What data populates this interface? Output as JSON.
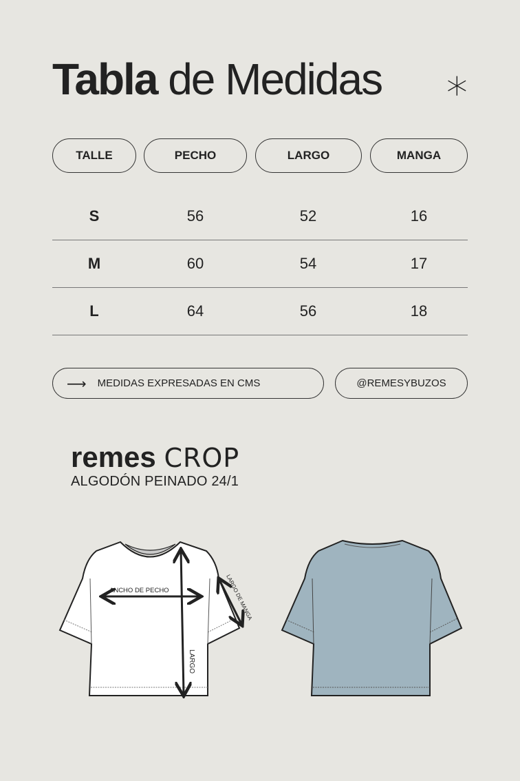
{
  "header": {
    "title_bold": "Tabla",
    "title_light": "de Medidas",
    "decor_icon": "asterisk-icon"
  },
  "table": {
    "columns": [
      "TALLE",
      "PECHO",
      "LARGO",
      "MANGA"
    ],
    "rows": [
      {
        "talle": "S",
        "pecho": "56",
        "largo": "52",
        "manga": "16"
      },
      {
        "talle": "M",
        "pecho": "60",
        "largo": "54",
        "manga": "17"
      },
      {
        "talle": "L",
        "pecho": "64",
        "largo": "56",
        "manga": "18"
      }
    ]
  },
  "footer": {
    "note": "MEDIDAS EXPRESADAS EN CMS",
    "note_icon": "arrow-right-icon",
    "handle": "@REMESYBUZOS"
  },
  "product": {
    "brand_bold": "remes",
    "brand_light": "CROP",
    "subtitle": "ALGODÓN PEINADO  24/1"
  },
  "diagram": {
    "chest_label": "ANCHO DE PECHO",
    "length_label": "LARGO",
    "sleeve_label": "LARGO DE MANGA",
    "back_color": "#9fb4bf",
    "front_color": "#ffffff"
  }
}
